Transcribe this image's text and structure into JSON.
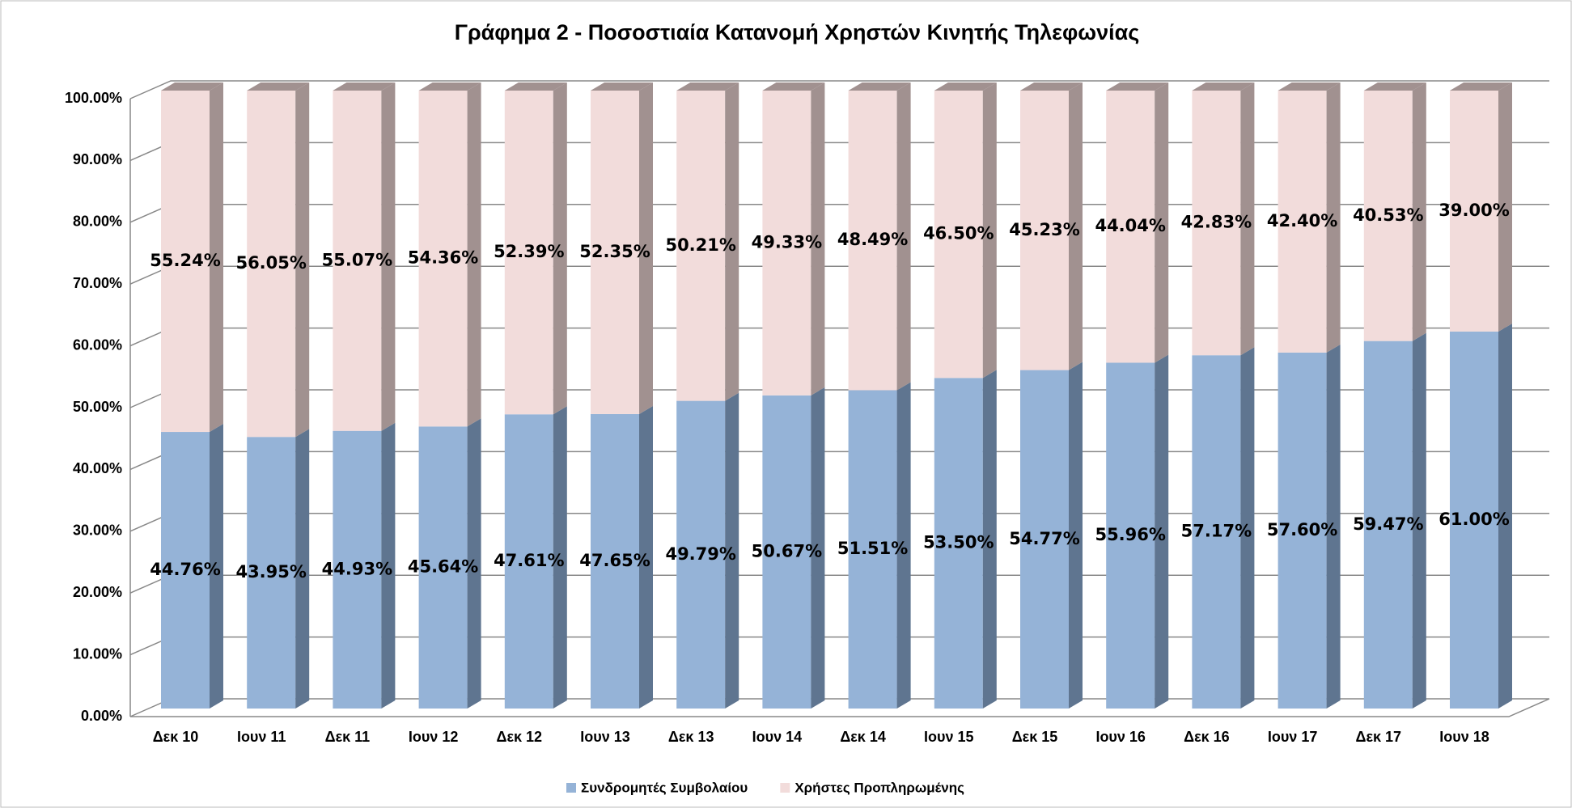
{
  "chart_data": {
    "type": "stacked_bar_3d",
    "title": "Γράφημα 2 - Ποσοστιαία Κατανομή Χρηστών Κινητής Τηλεφωνίας",
    "categories": [
      "Δεκ 10",
      "Ιουν 11",
      "Δεκ 11",
      "Ιουν 12",
      "Δεκ 12",
      "Ιουν 13",
      "Δεκ 13",
      "Ιουν 14",
      "Δεκ 14",
      "Ιουν 15",
      "Δεκ 15",
      "Ιουν 16",
      "Δεκ 16",
      "Ιουν 17",
      "Δεκ 17",
      "Ιουν 18"
    ],
    "series": [
      {
        "name": "Συνδρομητές Συμβολαίου",
        "color": "#95b3d7",
        "side_color": "#5f7590",
        "values": [
          44.76,
          43.95,
          44.93,
          45.64,
          47.61,
          47.65,
          49.79,
          50.67,
          51.51,
          53.5,
          54.77,
          55.96,
          57.17,
          57.6,
          59.47,
          61.0
        ],
        "value_labels": [
          "44.76%",
          "43.95%",
          "44.93%",
          "45.64%",
          "47.61%",
          "47.65%",
          "49.79%",
          "50.67%",
          "51.51%",
          "53.50%",
          "54.77%",
          "55.96%",
          "57.17%",
          "57.60%",
          "59.47%",
          "61.00%"
        ]
      },
      {
        "name": "Χρήστες Προπληρωμένης",
        "color": "#f2dcdb",
        "side_color": "#a19190",
        "values": [
          55.24,
          56.05,
          55.07,
          54.36,
          52.39,
          52.35,
          50.21,
          49.33,
          48.49,
          46.5,
          45.23,
          44.04,
          42.83,
          42.4,
          40.53,
          39.0
        ],
        "value_labels": [
          "55.24%",
          "56.05%",
          "55.07%",
          "54.36%",
          "52.39%",
          "52.35%",
          "50.21%",
          "49.33%",
          "48.49%",
          "46.50%",
          "45.23%",
          "44.04%",
          "42.83%",
          "42.40%",
          "40.53%",
          "39.00%"
        ]
      }
    ],
    "ylim": [
      0,
      100
    ],
    "yticks": [
      {
        "value": 0,
        "label": "0.00%"
      },
      {
        "value": 10,
        "label": "10.00%"
      },
      {
        "value": 20,
        "label": "20.00%"
      },
      {
        "value": 30,
        "label": "30.00%"
      },
      {
        "value": 40,
        "label": "40.00%"
      },
      {
        "value": 50,
        "label": "50.00%"
      },
      {
        "value": 60,
        "label": "60.00%"
      },
      {
        "value": 70,
        "label": "70.00%"
      },
      {
        "value": 80,
        "label": "80.00%"
      },
      {
        "value": 90,
        "label": "90.00%"
      },
      {
        "value": 100,
        "label": "100.00%"
      }
    ],
    "grid": true,
    "legend": "bottom"
  }
}
